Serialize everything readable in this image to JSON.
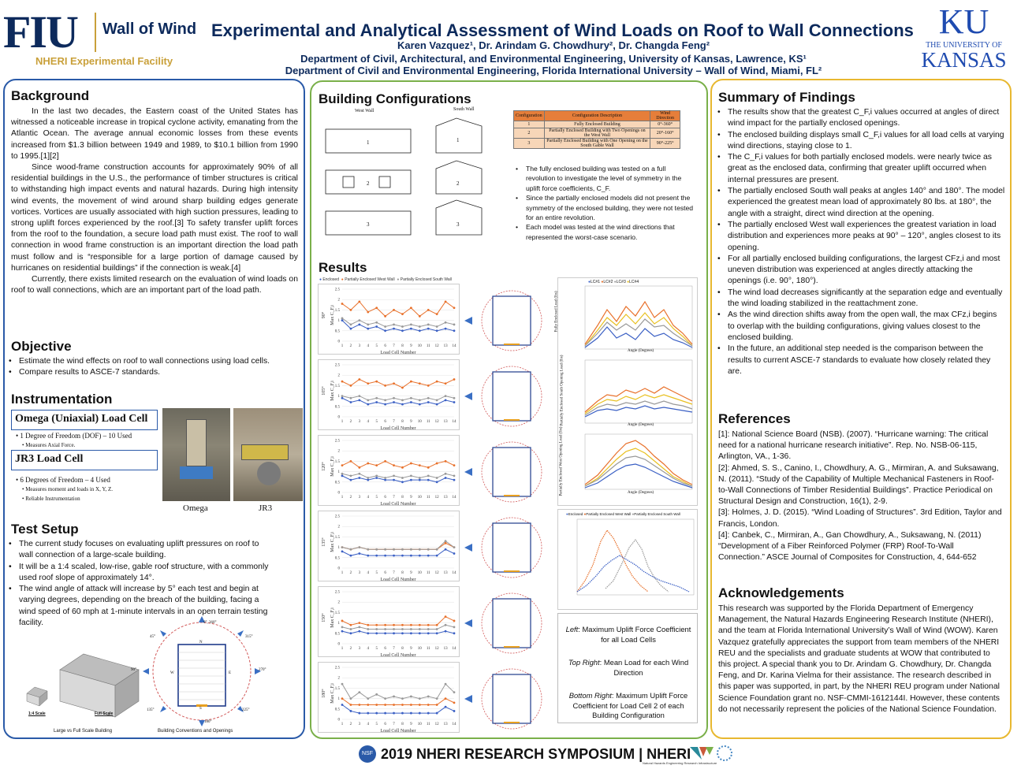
{
  "header": {
    "fiu_logo": "FIU",
    "wow": "Wall of Wind",
    "nheri_facility": "NHERI Experimental Facility",
    "title": "Experimental and Analytical Assessment of Wind Loads on Roof to Wall Connections",
    "authors": "Karen Vazquez¹, Dr. Arindam G. Chowdhury², Dr. Changda Feng²",
    "affil1": "Department of Civil, Architectural, and Environmental Engineering, University of Kansas, Lawrence, KS¹",
    "affil2": "Department of Civil and Environmental Engineering, Florida International University – Wall of Wind, Miami, FL²",
    "ku_mark": "KU",
    "ku_the": "THE UNIVERSITY OF",
    "ku_kansas": "KANSAS"
  },
  "background": {
    "heading": "Background",
    "p1": "In the last two decades, the Eastern coast of the United States has witnessed a noticeable increase in tropical cyclone activity, emanating from the Atlantic Ocean. The average annual economic losses from these events increased from $1.3 billion between 1949 and 1989, to $10.1 billion from 1990 to 1995.[1][2]",
    "p2": "Since wood-frame construction accounts for approximately 90% of all residential buildings in the U.S., the performance of timber structures is critical to withstanding high impact events and natural hazards. During high intensity wind events, the movement of wind around sharp building edges generate vortices. Vortices are usually associated with high suction pressures, leading to strong uplift forces experienced by the roof.[3] To safety transfer uplift forces from the roof to the foundation, a secure load path must exist. The roof to wall connection in wood frame construction is an important direction the load path must follow and is “responsible for a large portion of damage caused by hurricanes on residential buildings” if the connection is weak.[4]",
    "p3": "Currently, there exists limited research on the evaluation of wind loads on roof to wall connections, which are an important part of the load path."
  },
  "objective": {
    "heading": "Objective",
    "items": [
      "Estimate the wind effects on roof to wall connections using load cells.",
      "Compare results to ASCE-7 standards."
    ]
  },
  "instrumentation": {
    "heading": "Instrumentation",
    "omega_title": "Omega (Uniaxial) Load Cell",
    "omega_b1": "1 Degree of Freedom (DOF) – 10 Used",
    "omega_b2": "Measures Axial Force.",
    "jr3_title": "JR3 Load Cell",
    "jr3_b1": "6 Degrees of Freedom – 4 Used",
    "jr3_b2": "Measures moment and loads in X, Y, Z.",
    "jr3_b3": "Reliable Instrumentation",
    "cap_omega": "Omega",
    "cap_jr3": "JR3"
  },
  "test_setup": {
    "heading": "Test Setup",
    "items": [
      "The current study focuses on evaluating uplift pressures on roof to wall connection of a large-scale building.",
      "It will be a 1:4 scaled, low-rise, gable roof structure, with a commonly used roof slope of approximately 14°.",
      "The wind angle of attack will increase by 5° each test and begin at varying degrees, depending on the breach of the building, facing a wind speed of 60 mph at 1-minute intervals in an open terrain testing facility."
    ],
    "scale_14": "1:4 Scale",
    "scale_full": "Full Scale",
    "cap_left": "Large vs Full Scale Building",
    "cap_right": "Building Conventions and Openings",
    "angles": [
      "0°, 360°",
      "45°",
      "315°",
      "90°",
      "270°",
      "135°",
      "225°",
      "180°"
    ],
    "compass": [
      "N",
      "W",
      "E",
      "S"
    ]
  },
  "building_config": {
    "heading": "Building Configurations",
    "west": "West Wall",
    "south": "South Wall",
    "table_head": [
      "Configuration",
      "Configuration Description",
      "Wind Direction"
    ],
    "table_rows": [
      [
        "1",
        "Fully Enclosed Building",
        "0°-360°"
      ],
      [
        "2",
        "Partially Enclosed Building with Two Openings on the West Wall",
        "20°-160°"
      ],
      [
        "3",
        "Partially Enclosed Building with One Opening on the South Gable Wall",
        "90°-225°"
      ]
    ],
    "bullets": [
      "The fully enclosed building was tested on a full revolution to investigate the level of symmetry in the uplift force coefficients, C_F.",
      "Since the partially enclosed models did not present the symmetry of the enclosed building, they were not tested for an entire revolution.",
      "Each model was tested at the wind directions that represented the worst-case scenario."
    ]
  },
  "results": {
    "heading": "Results",
    "legend": [
      "Enclosed",
      "Partially Enclosed West Wall",
      "Partially Enclosed South Wall"
    ],
    "angles": [
      "90°",
      "105°",
      "120°",
      "135°",
      "150°",
      "180°"
    ],
    "xlabel": "Load Cell Number",
    "ylabel": "Max C_F,i",
    "right_legend": [
      "LC#1",
      "LC#2",
      "LC#3",
      "LC#4"
    ],
    "right_ylabels": [
      "Fully Enclosed Load (lbs)",
      "Partially Enclosed South Opening Load (lbs)",
      "Partially Enclosed West Opening Load (lbs)"
    ],
    "right_xlabel": "Angle (Degrees)",
    "caption_left_k": "Left",
    "caption_left": ": Maximum Uplift Force Coefficient for all Load Cells",
    "caption_top_k": "Top Right",
    "caption_top": ": Mean Load for each Wind Direction",
    "caption_bot_k": "Bottom Right",
    "caption_bot": ": Maximum Uplift Force Coefficient for Load Cell 2 of each Building Configuration"
  },
  "summary": {
    "heading": "Summary of Findings",
    "items": [
      "The results show that the greatest C_F,i values occurred at angles of direct wind impact for the partially enclosed openings.",
      "The enclosed building displays small C_F,i values for all load cells at varying wind directions, staying close to 1.",
      "The C_F,i values for both partially enclosed models. were nearly twice as great as the enclosed data, confirming that greater uplift occurred when internal pressures are present.",
      "The partially enclosed South wall peaks at angles 140° and 180°. The model experienced the greatest mean load of approximately 80 lbs. at 180°, the angle with a straight, direct wind direction at the opening.",
      "The partially enclosed West wall experiences the greatest variation in load distribution and experiences more peaks at 90° – 120°, angles closest to its opening.",
      "For all partially enclosed building configurations, the largest CFz,i and most uneven distribution was experienced at angles directly attacking the openings (i.e. 90°, 180°).",
      "The wind load decreases significantly at the separation edge and eventually the wind loading stabilized in the reattachment zone.",
      "As the wind direction shifts away from the open wall, the max CFz,i begins to overlap with the building configurations, giving values closest to the enclosed building.",
      "In the future, an additional step needed is the comparison between the results to current ASCE-7  standards to evaluate how closely related they are."
    ]
  },
  "references": {
    "heading": "References",
    "items": [
      "[1]: National Science Board (NSB). (2007). “Hurricane warning: The critical need for a national hurricane research initiative”. Rep. No. NSB-06-115, Arlington, VA., 1-36.",
      "[2]: Ahmed, S. S., Canino, I., Chowdhury, A. G., Mirmiran, A. and Suksawang, N. (2011). “Study of the Capability of Multiple Mechanical Fasteners in Roof-to-Wall Connections of Timber Residential Buildings”. Practice Periodical on Structural Design and Construction, 16(1), 2-9.",
      "[3]: Holmes, J. D. (2015). “Wind Loading of Structures”. 3rd Edition, Taylor and Francis, London.",
      "[4]: Canbek, C., Mirmiran, A., Gan Chowdhury, A., Suksawang, N. (2011) “Development of a Fiber Reinforced Polymer (FRP) Roof-To-Wall Connection.” ASCE Journal of Composites for Construction, 4, 644-652"
    ]
  },
  "acknowledgements": {
    "heading": "Acknowledgements",
    "text": "This research was supported by the Florida Department of Emergency Management, the Natural Hazards Engineering Research Institute (NHERI), and the team at Florida International University’s Wall of Wind (WOW). Karen Vazquez gratefully appreciates the support from team members of the NHERI REU and the specialists and graduate students at WOW that contributed to this project. A special thank you to Dr. Arindam G. Chowdhury, Dr. Changda Feng, and Dr. Karina Vielma for their assistance. The research described in this paper was supported, in part, by the NHERI REU program under National Science Foundation grant no. NSF-CMMI-1612144I. However, these contents do not necessarily represent the policies of the National Science Foundation."
  },
  "footer": {
    "text": "2019 NHERI RESEARCH SYMPOSIUM | NHERI",
    "sub": "Natural Hazards Engineering Research Infrastructure"
  },
  "chart_data": [
    {
      "type": "line",
      "title": "",
      "xlabel": "Load Cell Number",
      "ylabel": "Max C_F,i",
      "angle": "90°",
      "x": [
        1,
        2,
        3,
        4,
        5,
        6,
        7,
        8,
        9,
        10,
        11,
        12,
        13,
        14
      ],
      "ylim": [
        0,
        2.5
      ],
      "series": [
        {
          "name": "Enclosed",
          "values": [
            1.0,
            0.6,
            0.8,
            0.6,
            0.7,
            0.5,
            0.6,
            0.5,
            0.6,
            0.5,
            0.6,
            0.5,
            0.6,
            0.5
          ]
        },
        {
          "name": "Partially Enclosed West Wall",
          "values": [
            1.8,
            1.5,
            1.9,
            1.4,
            1.6,
            1.2,
            1.5,
            1.3,
            1.6,
            1.2,
            1.5,
            1.3,
            1.9,
            1.6
          ]
        },
        {
          "name": "Partially Enclosed South Wall",
          "values": [
            1.1,
            0.8,
            1.0,
            0.8,
            0.9,
            0.7,
            0.8,
            0.7,
            0.8,
            0.7,
            0.8,
            0.7,
            0.9,
            0.8
          ]
        }
      ]
    },
    {
      "type": "line",
      "title": "",
      "xlabel": "Load Cell Number",
      "ylabel": "Max C_F,i",
      "angle": "105°",
      "x": [
        1,
        2,
        3,
        4,
        5,
        6,
        7,
        8,
        9,
        10,
        11,
        12,
        13,
        14
      ],
      "ylim": [
        0,
        2.5
      ],
      "series": [
        {
          "name": "Enclosed",
          "values": [
            0.9,
            0.7,
            0.8,
            0.6,
            0.7,
            0.6,
            0.7,
            0.6,
            0.7,
            0.6,
            0.7,
            0.6,
            0.8,
            0.7
          ]
        },
        {
          "name": "Partially Enclosed West Wall",
          "values": [
            1.7,
            1.5,
            1.8,
            1.6,
            1.7,
            1.5,
            1.6,
            1.4,
            1.7,
            1.6,
            1.5,
            1.7,
            1.6,
            1.8
          ]
        },
        {
          "name": "Partially Enclosed South Wall",
          "values": [
            1.0,
            0.9,
            1.0,
            0.8,
            0.9,
            0.8,
            0.9,
            0.8,
            0.9,
            0.8,
            0.9,
            0.8,
            1.0,
            0.9
          ]
        }
      ]
    },
    {
      "type": "line",
      "title": "",
      "xlabel": "Load Cell Number",
      "ylabel": "Max C_F,i",
      "angle": "120°",
      "x": [
        1,
        2,
        3,
        4,
        5,
        6,
        7,
        8,
        9,
        10,
        11,
        12,
        13,
        14
      ],
      "ylim": [
        0,
        2.5
      ],
      "series": [
        {
          "name": "Enclosed",
          "values": [
            0.8,
            0.6,
            0.7,
            0.6,
            0.7,
            0.6,
            0.6,
            0.5,
            0.6,
            0.6,
            0.6,
            0.5,
            0.7,
            0.6
          ]
        },
        {
          "name": "Partially Enclosed West Wall",
          "values": [
            1.3,
            1.5,
            1.2,
            1.4,
            1.3,
            1.5,
            1.3,
            1.2,
            1.4,
            1.3,
            1.2,
            1.4,
            1.5,
            1.3
          ]
        },
        {
          "name": "Partially Enclosed South Wall",
          "values": [
            0.9,
            0.8,
            0.9,
            0.7,
            0.8,
            0.7,
            0.8,
            0.7,
            0.8,
            0.7,
            0.8,
            0.7,
            0.9,
            0.8
          ]
        }
      ]
    },
    {
      "type": "line",
      "title": "",
      "xlabel": "Load Cell Number",
      "ylabel": "Max C_F,i",
      "angle": "135°",
      "x": [
        1,
        2,
        3,
        4,
        5,
        6,
        7,
        8,
        9,
        10,
        11,
        12,
        13,
        14
      ],
      "ylim": [
        0,
        2.5
      ],
      "series": [
        {
          "name": "Enclosed",
          "values": [
            0.8,
            0.6,
            0.7,
            0.6,
            0.6,
            0.6,
            0.6,
            0.6,
            0.6,
            0.6,
            0.6,
            0.6,
            0.9,
            0.7
          ]
        },
        {
          "name": "Partially Enclosed West Wall",
          "values": [
            1.0,
            0.9,
            1.0,
            0.9,
            0.9,
            0.9,
            0.9,
            0.9,
            0.9,
            0.9,
            0.9,
            0.9,
            1.2,
            1.0
          ]
        },
        {
          "name": "Partially Enclosed South Wall",
          "values": [
            1.0,
            0.9,
            1.0,
            0.9,
            0.9,
            0.9,
            0.9,
            0.9,
            0.9,
            0.9,
            0.9,
            0.9,
            1.3,
            1.0
          ]
        }
      ]
    },
    {
      "type": "line",
      "title": "",
      "xlabel": "Load Cell Number",
      "ylabel": "Max C_F,i",
      "angle": "150°",
      "x": [
        1,
        2,
        3,
        4,
        5,
        6,
        7,
        8,
        9,
        10,
        11,
        12,
        13,
        14
      ],
      "ylim": [
        0,
        2.5
      ],
      "series": [
        {
          "name": "Enclosed",
          "values": [
            0.6,
            0.5,
            0.6,
            0.5,
            0.5,
            0.5,
            0.5,
            0.5,
            0.5,
            0.5,
            0.5,
            0.5,
            0.6,
            0.5
          ]
        },
        {
          "name": "Partially Enclosed West Wall",
          "values": [
            1.1,
            0.9,
            1.0,
            0.9,
            0.9,
            0.9,
            0.9,
            0.9,
            0.9,
            0.9,
            0.9,
            0.9,
            1.3,
            1.1
          ]
        },
        {
          "name": "Partially Enclosed South Wall",
          "values": [
            0.8,
            0.7,
            0.8,
            0.7,
            0.7,
            0.7,
            0.7,
            0.7,
            0.7,
            0.7,
            0.7,
            0.7,
            0.9,
            0.8
          ]
        }
      ]
    },
    {
      "type": "line",
      "title": "",
      "xlabel": "Load Cell Number",
      "ylabel": "Max C_F,i",
      "angle": "180°",
      "x": [
        1,
        2,
        3,
        4,
        5,
        6,
        7,
        8,
        9,
        10,
        11,
        12,
        13,
        14
      ],
      "ylim": [
        0,
        2.5
      ],
      "series": [
        {
          "name": "Enclosed",
          "values": [
            0.7,
            0.4,
            0.3,
            0.3,
            0.3,
            0.3,
            0.3,
            0.3,
            0.3,
            0.3,
            0.3,
            0.3,
            0.6,
            0.4
          ]
        },
        {
          "name": "Partially Enclosed West Wall",
          "values": [
            1.0,
            0.7,
            0.7,
            0.7,
            0.7,
            0.7,
            0.7,
            0.7,
            0.7,
            0.7,
            0.7,
            0.7,
            1.0,
            0.8
          ]
        },
        {
          "name": "Partially Enclosed South Wall",
          "values": [
            1.7,
            1.0,
            1.3,
            1.0,
            1.2,
            1.0,
            1.1,
            1.0,
            1.1,
            1.0,
            1.1,
            1.0,
            1.7,
            1.3
          ]
        }
      ]
    }
  ]
}
